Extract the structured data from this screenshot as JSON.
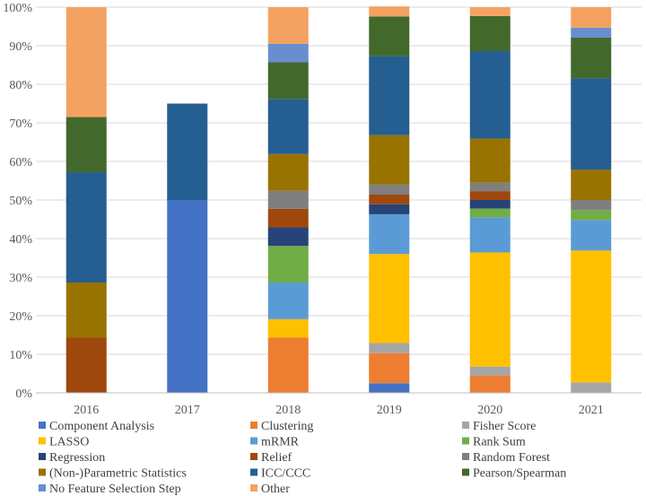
{
  "chart_data": {
    "type": "bar",
    "stacked": true,
    "percent": true,
    "title": "",
    "xlabel": "",
    "ylabel": "",
    "ylim": [
      0,
      100
    ],
    "yticks": [
      "0%",
      "10%",
      "20%",
      "30%",
      "40%",
      "50%",
      "60%",
      "70%",
      "80%",
      "90%",
      "100%"
    ],
    "categories": [
      "2016",
      "2017",
      "2018",
      "2019",
      "2020",
      "2021"
    ],
    "series": [
      {
        "name": "Component Analysis",
        "color": "#4472C4",
        "values": [
          0,
          50,
          0,
          2.5,
          0,
          0
        ]
      },
      {
        "name": "Clustering",
        "color": "#ED7D31",
        "values": [
          0,
          0,
          14.3,
          7.8,
          4.5,
          0
        ]
      },
      {
        "name": "Fisher Score",
        "color": "#A5A5A5",
        "values": [
          0,
          0,
          0,
          2.6,
          2.3,
          2.7
        ]
      },
      {
        "name": "LASSO",
        "color": "#FFC000",
        "values": [
          0,
          0,
          4.8,
          23.1,
          29.6,
          34.2
        ]
      },
      {
        "name": "mRMR",
        "color": "#5B9BD5",
        "values": [
          0,
          0,
          9.5,
          10.3,
          9.1,
          7.9
        ]
      },
      {
        "name": "Rank Sum",
        "color": "#70AD47",
        "values": [
          0,
          0,
          9.5,
          0,
          2.3,
          2.6
        ]
      },
      {
        "name": "Regression",
        "color": "#264478",
        "values": [
          0,
          0,
          4.8,
          2.6,
          2.2,
          0
        ]
      },
      {
        "name": "Relief",
        "color": "#9E480E",
        "values": [
          14.3,
          0,
          4.8,
          2.5,
          2.3,
          0
        ]
      },
      {
        "name": "Random Forest",
        "color": "#7F7F7F",
        "values": [
          0,
          0,
          4.7,
          2.6,
          2.2,
          2.6
        ]
      },
      {
        "name": "(Non-)Parametric Statistics",
        "color": "#997300",
        "values": [
          14.3,
          0,
          9.5,
          12.8,
          11.4,
          7.9
        ]
      },
      {
        "name": "ICC/CCC",
        "color": "#255E91",
        "values": [
          28.6,
          25,
          14.3,
          20.5,
          22.7,
          23.7
        ]
      },
      {
        "name": "Pearson/Spearman",
        "color": "#43682B",
        "values": [
          14.3,
          0,
          9.5,
          10.3,
          9.1,
          10.5
        ]
      },
      {
        "name": "No Feature Selection Step",
        "color": "#698ED0",
        "values": [
          0,
          0,
          4.8,
          0,
          0,
          2.6
        ]
      },
      {
        "name": "Other",
        "color": "#F4A261",
        "values": [
          28.5,
          0,
          9.5,
          2.6,
          2.3,
          5.3
        ]
      }
    ],
    "legend_position": "bottom",
    "grid": true
  }
}
